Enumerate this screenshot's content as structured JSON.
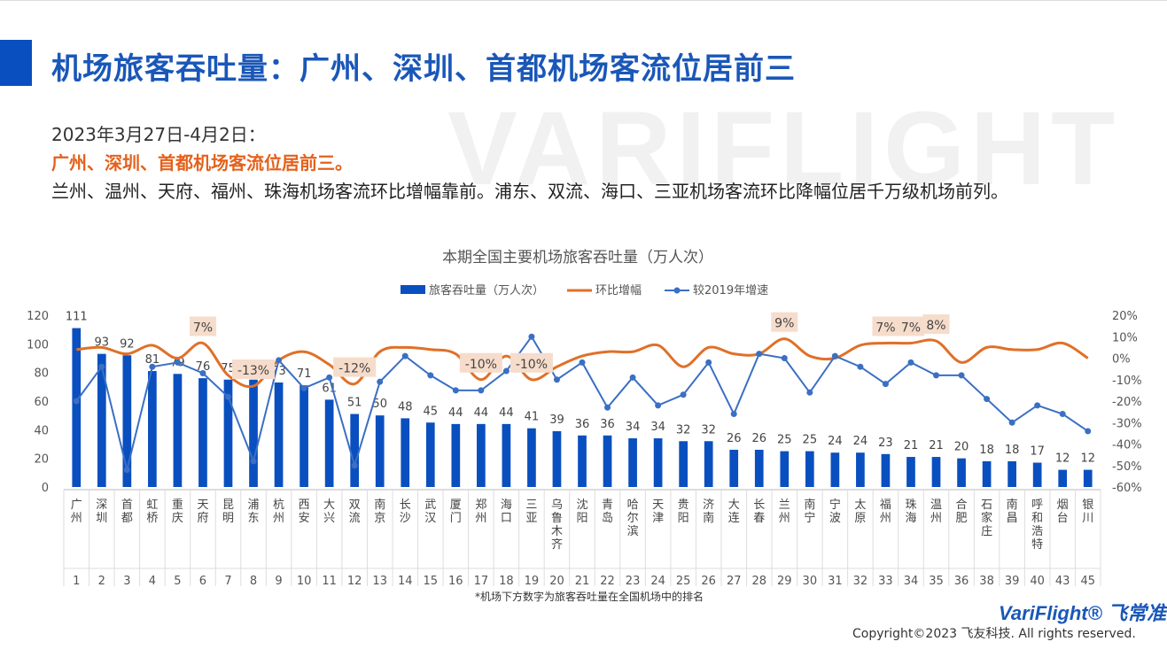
{
  "header": {
    "title": "机场旅客吞吐量：广州、深圳、首都机场客流位居前三",
    "watermark": "VARIFLIGHT"
  },
  "summary": {
    "date_line": "2023年3月27日-4月2日：",
    "highlight": "广州、深圳、首都机场客流位居前三。",
    "detail": "兰州、温州、天府、福州、珠海机场客流环比增幅靠前。浦东、双流、海口、三亚机场客流环比降幅位居千万级机场前列。"
  },
  "footer": {
    "note": "*机场下方数字为旅客吞吐量在全国机场中的排名",
    "logo": "VariFlight® 飞常准",
    "copyright": "Copyright©2023 飞友科技. All rights reserved."
  },
  "colors": {
    "bar": "#0a4fbf",
    "mom": "#e07028",
    "vs2019": "#3a6fc4",
    "callout_bg": "#f6dccb"
  },
  "chart_data": {
    "type": "bar",
    "title": "本期全国主要机场旅客吞吐量（万人次）",
    "legend": [
      "旅客吞吐量（万人次）",
      "环比增幅",
      "较2019年增速"
    ],
    "legend_position": "top",
    "ylim": [
      0,
      120
    ],
    "yticks": [
      "120",
      "100",
      "80",
      "60",
      "40",
      "20",
      "0"
    ],
    "y2ticks": [
      "20%",
      "10%",
      "0%",
      "-10%",
      "-20%",
      "-30%",
      "-40%",
      "-50%",
      "-60%"
    ],
    "y2lim": [
      -60,
      20
    ],
    "categories": [
      "广州",
      "深圳",
      "首都",
      "虹桥",
      "重庆",
      "天府",
      "昆明",
      "浦东",
      "杭州",
      "西安",
      "大兴",
      "双流",
      "南京",
      "长沙",
      "武汉",
      "厦门",
      "郑州",
      "海口",
      "三亚",
      "乌鲁木齐",
      "沈阳",
      "青岛",
      "哈尔滨",
      "天津",
      "贵阳",
      "济南",
      "大连",
      "长春",
      "兰州",
      "南宁",
      "宁波",
      "太原",
      "福州",
      "珠海",
      "温州",
      "合肥",
      "石家庄",
      "南昌",
      "呼和浩特",
      "烟台",
      "银川"
    ],
    "ranks": [
      "1",
      "2",
      "3",
      "4",
      "5",
      "6",
      "7",
      "8",
      "9",
      "10",
      "11",
      "12",
      "13",
      "14",
      "15",
      "16",
      "17",
      "18",
      "19",
      "20",
      "21",
      "22",
      "23",
      "24",
      "25",
      "26",
      "27",
      "28",
      "29",
      "30",
      "31",
      "32",
      "33",
      "34",
      "35",
      "36",
      "38",
      "39",
      "40",
      "43",
      "45"
    ],
    "values": [
      111,
      93,
      92,
      81,
      79,
      76,
      75,
      75,
      73,
      71,
      61,
      51,
      50,
      48,
      45,
      44,
      44,
      44,
      41,
      39,
      36,
      36,
      34,
      34,
      32,
      32,
      26,
      26,
      25,
      25,
      24,
      24,
      23,
      21,
      21,
      20,
      18,
      18,
      17,
      12,
      12
    ],
    "value_labels": [
      "111",
      "93",
      "92",
      "81",
      "79",
      "76",
      "75",
      "75",
      "73",
      "71",
      "61",
      "51",
      "50",
      "48",
      "45",
      "44",
      "44",
      "44",
      "41",
      "39",
      "36",
      "36",
      "34",
      "34",
      "32",
      "32",
      "26",
      "26",
      "25",
      "25",
      "24",
      "24",
      "23",
      "21",
      "21",
      "20",
      "18",
      "18",
      "17",
      "12",
      "12"
    ],
    "series": [
      {
        "name": "环比增幅",
        "values": [
          4,
          5,
          2,
          6,
          0,
          7,
          -8,
          -13,
          -1,
          3,
          -3,
          -12,
          3,
          5,
          4,
          2,
          -10,
          1,
          -10,
          -4,
          1,
          3,
          3,
          6,
          -4,
          5,
          2,
          2,
          9,
          1,
          0,
          6,
          7,
          7,
          8,
          -2,
          5,
          4,
          4,
          7,
          0
        ]
      },
      {
        "name": "较2019年增速",
        "values": [
          -20,
          -4,
          -52,
          -4,
          -2,
          -7,
          -18,
          -48,
          -1,
          -14,
          -9,
          -50,
          -11,
          1,
          -8,
          -15,
          -15,
          -6,
          10,
          -10,
          -2,
          -23,
          -9,
          -22,
          -17,
          -2,
          -26,
          2,
          0,
          -16,
          1,
          -4,
          -12,
          -2,
          -8,
          -8,
          -19,
          -30,
          -22,
          -26,
          -34
        ]
      }
    ],
    "callouts": [
      {
        "index": 5,
        "text": "7%"
      },
      {
        "index": 7,
        "text": "-13%"
      },
      {
        "index": 11,
        "text": "-12%"
      },
      {
        "index": 16,
        "text": "-10%"
      },
      {
        "index": 18,
        "text": "-10%"
      },
      {
        "index": 28,
        "text": "9%"
      },
      {
        "index": 32,
        "text": "7%"
      },
      {
        "index": 33,
        "text": "7%"
      },
      {
        "index": 34,
        "text": "8%"
      }
    ]
  }
}
